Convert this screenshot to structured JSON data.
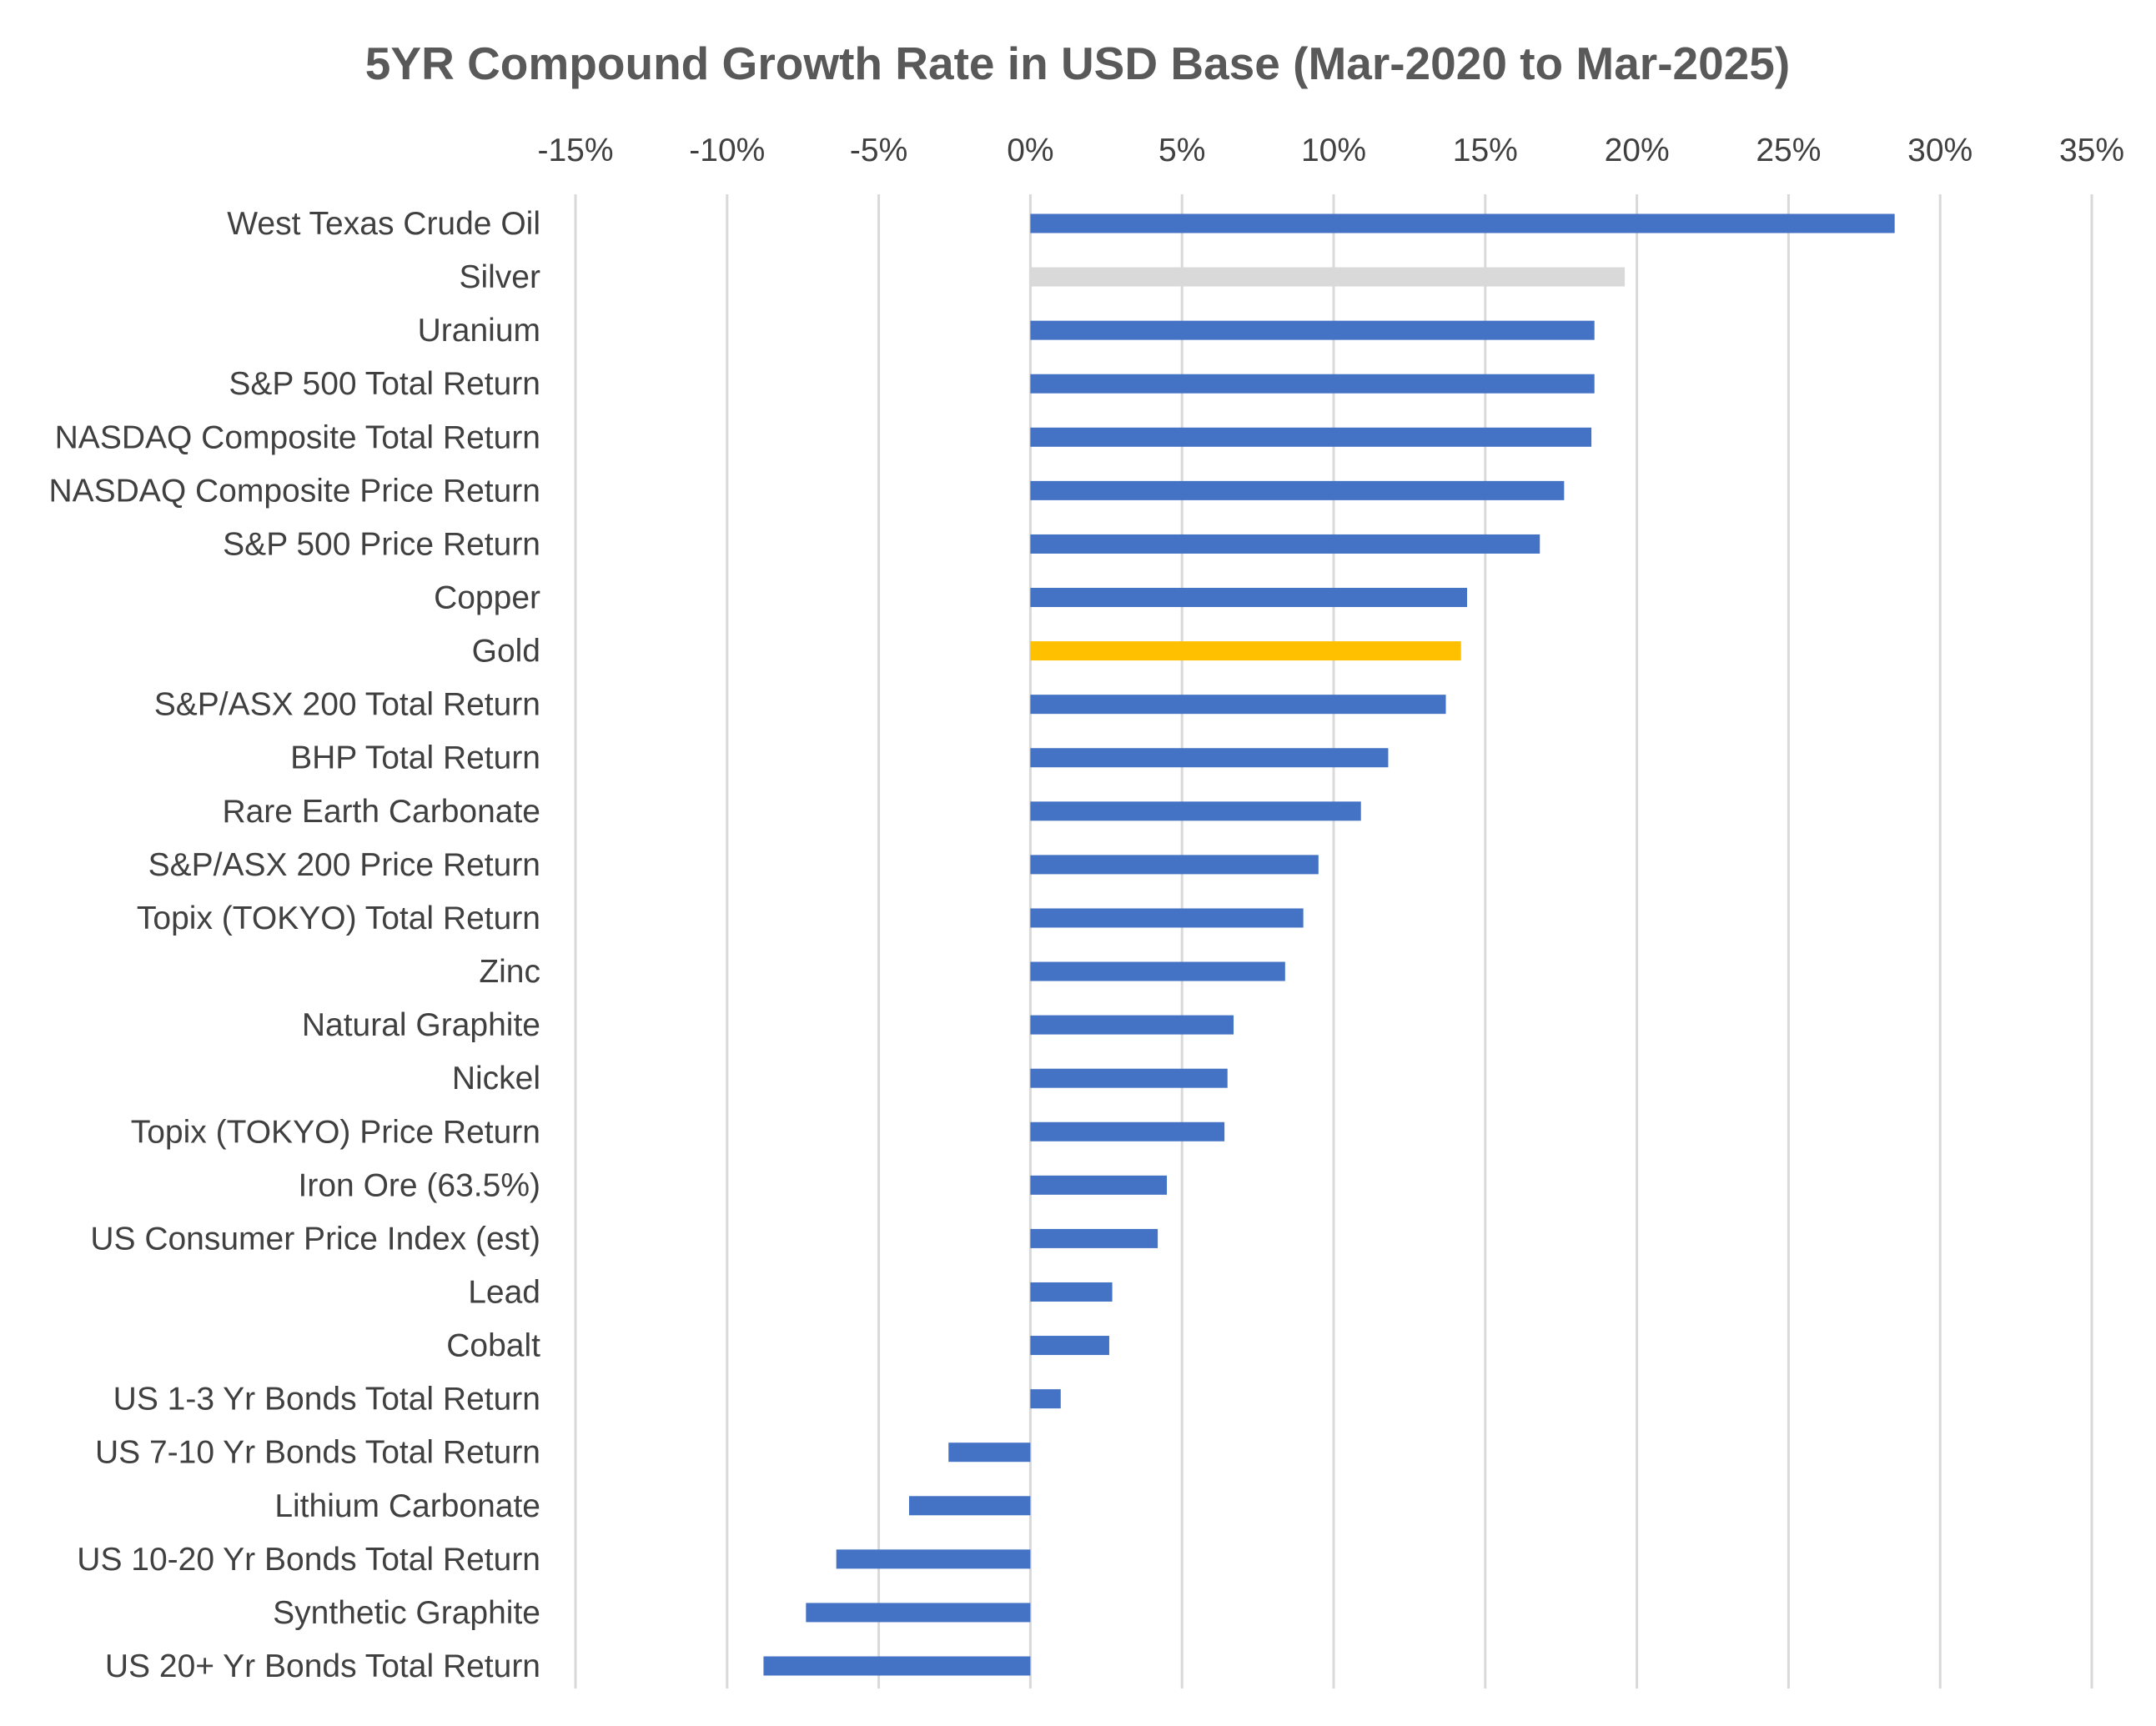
{
  "chart_data": {
    "type": "bar",
    "orientation": "horizontal",
    "title": "5YR Compound Growth Rate in USD Base (Mar-2020 to Mar-2025)",
    "xlabel": "",
    "ylabel": "",
    "xlim": [
      -15,
      35
    ],
    "xticks": [
      -15,
      -10,
      -5,
      0,
      5,
      10,
      15,
      20,
      25,
      30,
      35
    ],
    "xtick_labels": [
      "-15%",
      "-10%",
      "-5%",
      "0%",
      "5%",
      "10%",
      "15%",
      "20%",
      "25%",
      "30%",
      "35%"
    ],
    "axis_position": "top",
    "grid": true,
    "colors": {
      "default": "#4472c4",
      "silver": "#d9d9d9",
      "gold": "#ffc000",
      "grid": "#d9d9d9",
      "title": "#595959",
      "text": "#404040"
    },
    "categories": [
      "West Texas Crude Oil",
      "Silver",
      "Uranium",
      "S&P 500 Total Return",
      "NASDAQ Composite Total Return",
      "NASDAQ Composite Price Return",
      "S&P 500 Price Return",
      "Copper",
      "Gold",
      "S&P/ASX 200 Total Return",
      "BHP Total Return",
      "Rare Earth Carbonate",
      "S&P/ASX 200 Price Return",
      "Topix (TOKYO) Total Return",
      "Zinc",
      "Natural Graphite",
      "Nickel",
      "Topix (TOKYO) Price Return",
      "Iron Ore (63.5%)",
      "US Consumer Price Index (est)",
      "Lead",
      "Cobalt",
      "US 1-3 Yr Bonds Total Return",
      "US 7-10 Yr Bonds Total Return",
      "Lithium Carbonate",
      "US 10-20 Yr Bonds Total Return",
      "Synthetic Graphite",
      "US 20+ Yr Bonds Total Return"
    ],
    "values": [
      28.5,
      19.6,
      18.6,
      18.6,
      18.5,
      17.6,
      16.8,
      14.4,
      14.2,
      13.7,
      11.8,
      10.9,
      9.5,
      9.0,
      8.4,
      6.7,
      6.5,
      6.4,
      4.5,
      4.2,
      2.7,
      2.6,
      1.0,
      -2.7,
      -4.0,
      -6.4,
      -7.4,
      -8.8
    ],
    "bar_colors": [
      "#4472c4",
      "#d9d9d9",
      "#4472c4",
      "#4472c4",
      "#4472c4",
      "#4472c4",
      "#4472c4",
      "#4472c4",
      "#ffc000",
      "#4472c4",
      "#4472c4",
      "#4472c4",
      "#4472c4",
      "#4472c4",
      "#4472c4",
      "#4472c4",
      "#4472c4",
      "#4472c4",
      "#4472c4",
      "#4472c4",
      "#4472c4",
      "#4472c4",
      "#4472c4",
      "#4472c4",
      "#4472c4",
      "#4472c4",
      "#4472c4",
      "#4472c4"
    ]
  }
}
